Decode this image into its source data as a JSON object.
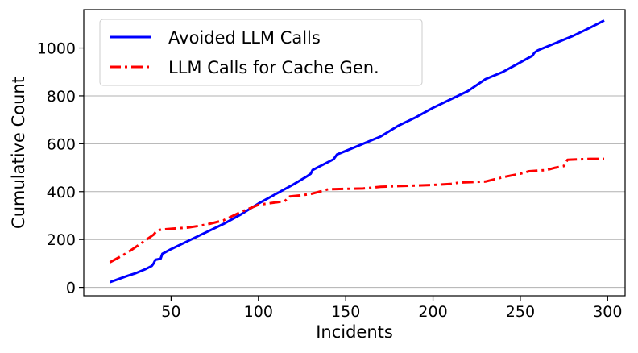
{
  "chart_data": {
    "type": "line",
    "xlabel": "Incidents",
    "ylabel": "Cumulative Count",
    "xlim": [
      0,
      310
    ],
    "ylim": [
      -35,
      1160
    ],
    "xticks": [
      50,
      100,
      150,
      200,
      250,
      300
    ],
    "yticks": [
      0,
      200,
      400,
      600,
      800,
      1000
    ],
    "grid": "horizontal",
    "legend_position": "top-left",
    "series": [
      {
        "name": "Avoided LLM Calls",
        "color": "#0000ff",
        "style": "solid",
        "points": [
          [
            15,
            22
          ],
          [
            20,
            35
          ],
          [
            25,
            48
          ],
          [
            30,
            60
          ],
          [
            35,
            75
          ],
          [
            39,
            90
          ],
          [
            40,
            100
          ],
          [
            41,
            115
          ],
          [
            44,
            120
          ],
          [
            45,
            140
          ],
          [
            50,
            160
          ],
          [
            60,
            195
          ],
          [
            70,
            230
          ],
          [
            80,
            265
          ],
          [
            90,
            305
          ],
          [
            100,
            350
          ],
          [
            110,
            390
          ],
          [
            120,
            430
          ],
          [
            128,
            465
          ],
          [
            130,
            475
          ],
          [
            131,
            490
          ],
          [
            135,
            505
          ],
          [
            143,
            535
          ],
          [
            145,
            555
          ],
          [
            150,
            570
          ],
          [
            160,
            600
          ],
          [
            170,
            630
          ],
          [
            180,
            675
          ],
          [
            190,
            710
          ],
          [
            200,
            750
          ],
          [
            210,
            785
          ],
          [
            220,
            820
          ],
          [
            230,
            870
          ],
          [
            240,
            900
          ],
          [
            250,
            940
          ],
          [
            257,
            968
          ],
          [
            258,
            980
          ],
          [
            260,
            990
          ],
          [
            270,
            1020
          ],
          [
            280,
            1050
          ],
          [
            290,
            1085
          ],
          [
            298,
            1115
          ]
        ]
      },
      {
        "name": "LLM Calls for Cache Gen.",
        "color": "#ff0000",
        "style": "dashdot",
        "points": [
          [
            15,
            105
          ],
          [
            20,
            125
          ],
          [
            25,
            145
          ],
          [
            30,
            170
          ],
          [
            35,
            195
          ],
          [
            40,
            220
          ],
          [
            42,
            238
          ],
          [
            45,
            242
          ],
          [
            60,
            250
          ],
          [
            70,
            262
          ],
          [
            80,
            280
          ],
          [
            90,
            315
          ],
          [
            100,
            345
          ],
          [
            110,
            355
          ],
          [
            115,
            360
          ],
          [
            118,
            380
          ],
          [
            125,
            385
          ],
          [
            130,
            390
          ],
          [
            135,
            400
          ],
          [
            140,
            410
          ],
          [
            160,
            413
          ],
          [
            170,
            420
          ],
          [
            180,
            423
          ],
          [
            200,
            428
          ],
          [
            210,
            432
          ],
          [
            215,
            438
          ],
          [
            230,
            442
          ],
          [
            240,
            460
          ],
          [
            250,
            475
          ],
          [
            255,
            485
          ],
          [
            265,
            490
          ],
          [
            270,
            500
          ],
          [
            275,
            507
          ],
          [
            277,
            533
          ],
          [
            290,
            537
          ],
          [
            298,
            537
          ]
        ]
      }
    ]
  }
}
